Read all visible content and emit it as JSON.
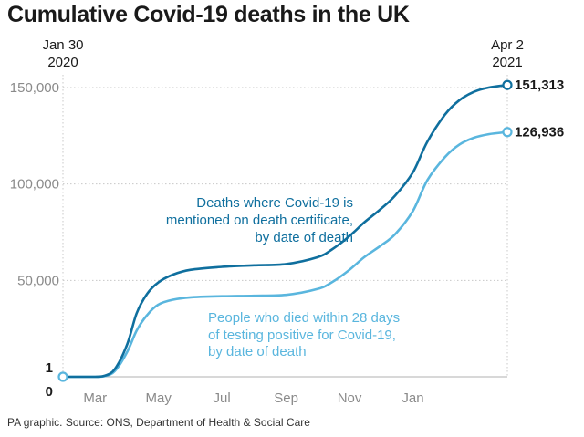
{
  "header": {
    "title": "Cumulative Covid-19 deaths in the UK"
  },
  "footer": {
    "source": "PA graphic. Source: ONS, Department of Health & Social Care"
  },
  "colors": {
    "series_certificate": "#0f6f9e",
    "series_28days": "#5ab6de",
    "grid": "#c8c8c8",
    "tick_text": "#8a8a8a"
  },
  "chart_data": {
    "type": "line",
    "title": "Cumulative Covid-19 deaths in the UK",
    "x_axis": {
      "start": "2020-01-30",
      "end": "2021-04-02",
      "start_label_lines": [
        "Jan 30",
        "2020"
      ],
      "end_label_lines": [
        "Apr 2",
        "2021"
      ],
      "ticks": [
        {
          "label": "Mar",
          "date": "2020-03-01"
        },
        {
          "label": "May",
          "date": "2020-05-01"
        },
        {
          "label": "Jul",
          "date": "2020-07-01"
        },
        {
          "label": "Sep",
          "date": "2020-09-01"
        },
        {
          "label": "Nov",
          "date": "2020-11-01"
        },
        {
          "label": "Jan",
          "date": "2021-01-01"
        }
      ]
    },
    "y_axis": {
      "min": 0,
      "max": 150000,
      "gridlines": [
        50000,
        100000,
        150000
      ],
      "tick_labels": [
        {
          "value": 50000,
          "label": "50,000"
        },
        {
          "value": 100000,
          "label": "100,000"
        },
        {
          "value": 150000,
          "label": "150,000"
        }
      ],
      "zero_label": "0"
    },
    "start_value_label": "1",
    "series": [
      {
        "key": "certificate",
        "label_lines": [
          "Deaths where Covid-19 is",
          "mentioned on death certificate,",
          "by date of death"
        ],
        "end_label": "151,313",
        "points": [
          {
            "x": "2020-01-30",
            "y": 1
          },
          {
            "x": "2020-03-01",
            "y": 0
          },
          {
            "x": "2020-03-10",
            "y": 500
          },
          {
            "x": "2020-03-20",
            "y": 4000
          },
          {
            "x": "2020-04-01",
            "y": 17000
          },
          {
            "x": "2020-04-10",
            "y": 33000
          },
          {
            "x": "2020-04-20",
            "y": 43000
          },
          {
            "x": "2020-05-01",
            "y": 49000
          },
          {
            "x": "2020-05-15",
            "y": 53000
          },
          {
            "x": "2020-06-01",
            "y": 55500
          },
          {
            "x": "2020-07-01",
            "y": 57000
          },
          {
            "x": "2020-08-01",
            "y": 57800
          },
          {
            "x": "2020-09-01",
            "y": 58500
          },
          {
            "x": "2020-10-01",
            "y": 62000
          },
          {
            "x": "2020-10-15",
            "y": 66000
          },
          {
            "x": "2020-11-01",
            "y": 73000
          },
          {
            "x": "2020-11-15",
            "y": 80000
          },
          {
            "x": "2020-12-01",
            "y": 87000
          },
          {
            "x": "2020-12-15",
            "y": 94000
          },
          {
            "x": "2021-01-01",
            "y": 106000
          },
          {
            "x": "2021-01-15",
            "y": 122000
          },
          {
            "x": "2021-02-01",
            "y": 136000
          },
          {
            "x": "2021-02-15",
            "y": 143500
          },
          {
            "x": "2021-03-01",
            "y": 147800
          },
          {
            "x": "2021-03-15",
            "y": 150000
          },
          {
            "x": "2021-04-02",
            "y": 151313
          }
        ]
      },
      {
        "key": "28days",
        "label_lines": [
          "People who died within 28 days",
          "of testing positive for Covid-19,",
          "by date of death"
        ],
        "end_label": "126,936",
        "points": [
          {
            "x": "2020-01-30",
            "y": 1
          },
          {
            "x": "2020-03-01",
            "y": 0
          },
          {
            "x": "2020-03-10",
            "y": 300
          },
          {
            "x": "2020-03-20",
            "y": 3000
          },
          {
            "x": "2020-04-01",
            "y": 13000
          },
          {
            "x": "2020-04-10",
            "y": 24000
          },
          {
            "x": "2020-04-20",
            "y": 32000
          },
          {
            "x": "2020-05-01",
            "y": 37500
          },
          {
            "x": "2020-05-15",
            "y": 40000
          },
          {
            "x": "2020-06-01",
            "y": 41200
          },
          {
            "x": "2020-07-01",
            "y": 41800
          },
          {
            "x": "2020-08-01",
            "y": 42000
          },
          {
            "x": "2020-09-01",
            "y": 42500
          },
          {
            "x": "2020-10-01",
            "y": 45500
          },
          {
            "x": "2020-10-15",
            "y": 49000
          },
          {
            "x": "2020-11-01",
            "y": 55500
          },
          {
            "x": "2020-11-15",
            "y": 62000
          },
          {
            "x": "2020-12-01",
            "y": 68000
          },
          {
            "x": "2020-12-15",
            "y": 74000
          },
          {
            "x": "2021-01-01",
            "y": 86000
          },
          {
            "x": "2021-01-15",
            "y": 102000
          },
          {
            "x": "2021-02-01",
            "y": 114000
          },
          {
            "x": "2021-02-15",
            "y": 120500
          },
          {
            "x": "2021-03-01",
            "y": 124000
          },
          {
            "x": "2021-03-15",
            "y": 125800
          },
          {
            "x": "2021-04-02",
            "y": 126936
          }
        ]
      }
    ]
  }
}
